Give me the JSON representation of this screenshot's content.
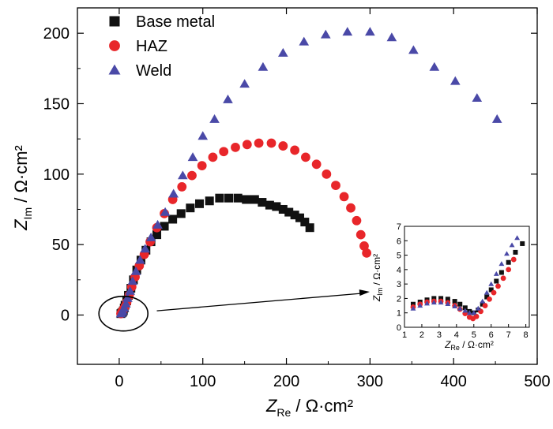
{
  "chart_data": {
    "type": "scatter",
    "title": "",
    "xlabel": {
      "main": "Z",
      "sub": "Re",
      "unit": " / Ω·cm²"
    },
    "ylabel": {
      "main": "Z",
      "sub": "Im",
      "unit": " / Ω·cm²"
    },
    "xlim": [
      -50,
      500
    ],
    "ylim": [
      -35,
      218
    ],
    "xticks": [
      "0",
      "100",
      "200",
      "300",
      "400",
      "500"
    ],
    "xtick_values": [
      0,
      100,
      200,
      300,
      400,
      500
    ],
    "yticks": [
      "0",
      "50",
      "100",
      "150",
      "200"
    ],
    "ytick_values": [
      0,
      50,
      100,
      150,
      200
    ],
    "legend_position": "top-left",
    "series": [
      {
        "name": "Base metal",
        "marker": "square",
        "color": "#111111",
        "points": [
          [
            2,
            1
          ],
          [
            3,
            1.5
          ],
          [
            4,
            2
          ],
          [
            5,
            3
          ],
          [
            6,
            5
          ],
          [
            7,
            7
          ],
          [
            9,
            10
          ],
          [
            11,
            14
          ],
          [
            14,
            19
          ],
          [
            17,
            25
          ],
          [
            21,
            32
          ],
          [
            26,
            39
          ],
          [
            32,
            46
          ],
          [
            38,
            52
          ],
          [
            45,
            57
          ],
          [
            54,
            63
          ],
          [
            64,
            68
          ],
          [
            74,
            72
          ],
          [
            85,
            76
          ],
          [
            96,
            79
          ],
          [
            108,
            81
          ],
          [
            120,
            83
          ],
          [
            131,
            83
          ],
          [
            142,
            83
          ],
          [
            152,
            82
          ],
          [
            162,
            82
          ],
          [
            171,
            80
          ],
          [
            180,
            78
          ],
          [
            188,
            77
          ],
          [
            196,
            75
          ],
          [
            203,
            73
          ],
          [
            210,
            71
          ],
          [
            216,
            69
          ],
          [
            222,
            66
          ],
          [
            228,
            62
          ]
        ]
      },
      {
        "name": "HAZ",
        "marker": "circle",
        "color": "#e8262a",
        "points": [
          [
            2,
            1
          ],
          [
            3,
            2
          ],
          [
            4,
            3
          ],
          [
            5,
            4
          ],
          [
            7,
            6
          ],
          [
            9,
            9
          ],
          [
            12,
            14
          ],
          [
            15,
            20
          ],
          [
            19,
            27
          ],
          [
            24,
            35
          ],
          [
            30,
            43
          ],
          [
            37,
            52
          ],
          [
            45,
            62
          ],
          [
            54,
            72
          ],
          [
            64,
            82
          ],
          [
            75,
            91
          ],
          [
            87,
            99
          ],
          [
            99,
            106
          ],
          [
            112,
            112
          ],
          [
            125,
            116
          ],
          [
            139,
            119
          ],
          [
            153,
            121
          ],
          [
            167,
            122
          ],
          [
            182,
            122
          ],
          [
            196,
            120
          ],
          [
            210,
            117
          ],
          [
            223,
            112
          ],
          [
            236,
            107
          ],
          [
            248,
            100
          ],
          [
            259,
            92
          ],
          [
            269,
            84
          ],
          [
            277,
            76
          ],
          [
            284,
            67
          ],
          [
            289,
            57
          ],
          [
            293,
            49
          ],
          [
            296,
            44
          ]
        ]
      },
      {
        "name": "Weld",
        "marker": "triangle",
        "color": "#4a49a7",
        "points": [
          [
            2,
            1
          ],
          [
            3,
            2
          ],
          [
            4,
            3
          ],
          [
            6,
            5
          ],
          [
            8,
            8
          ],
          [
            10,
            12
          ],
          [
            13,
            17
          ],
          [
            16,
            24
          ],
          [
            20,
            31
          ],
          [
            25,
            39
          ],
          [
            31,
            47
          ],
          [
            38,
            55
          ],
          [
            46,
            64
          ],
          [
            55,
            73
          ],
          [
            65,
            86
          ],
          [
            76,
            99
          ],
          [
            88,
            112
          ],
          [
            100,
            127
          ],
          [
            114,
            139
          ],
          [
            130,
            153
          ],
          [
            150,
            164
          ],
          [
            172,
            176
          ],
          [
            196,
            186
          ],
          [
            221,
            194
          ],
          [
            247,
            199
          ],
          [
            273,
            201
          ],
          [
            300,
            201
          ],
          [
            326,
            197
          ],
          [
            352,
            188
          ],
          [
            377,
            176
          ],
          [
            402,
            166
          ],
          [
            428,
            154
          ],
          [
            452,
            139
          ]
        ]
      }
    ],
    "annotation": {
      "type": "ellipse-with-arrow",
      "ellipse_center": [
        5,
        1
      ],
      "arrow_from": [
        45,
        3
      ],
      "arrow_to_note": "points to inset"
    },
    "inset": {
      "type": "scatter",
      "xlabel": {
        "main": "Z",
        "sub": "Re",
        "unit": " / Ω·cm²"
      },
      "ylabel": {
        "main": "Z",
        "sub": "Im",
        "unit": " / Ω·cm²"
      },
      "xlim": [
        1,
        8.2
      ],
      "ylim": [
        0,
        7
      ],
      "xticks": [
        "1",
        "2",
        "3",
        "4",
        "5",
        "6",
        "7",
        "8"
      ],
      "xtick_values": [
        1,
        2,
        3,
        4,
        5,
        6,
        7,
        8
      ],
      "yticks": [
        "0",
        "1",
        "2",
        "3",
        "4",
        "5",
        "6",
        "7"
      ],
      "ytick_values": [
        0,
        1,
        2,
        3,
        4,
        5,
        6,
        7
      ],
      "series": [
        {
          "name": "Base metal",
          "marker": "square",
          "color": "#111111",
          "points": [
            [
              1.5,
              1.6
            ],
            [
              1.9,
              1.75
            ],
            [
              2.3,
              1.9
            ],
            [
              2.7,
              2.0
            ],
            [
              3.1,
              2.0
            ],
            [
              3.5,
              1.95
            ],
            [
              3.9,
              1.8
            ],
            [
              4.2,
              1.6
            ],
            [
              4.5,
              1.35
            ],
            [
              4.75,
              1.1
            ],
            [
              5.0,
              1.0
            ],
            [
              5.25,
              1.2
            ],
            [
              5.5,
              1.6
            ],
            [
              5.75,
              2.1
            ],
            [
              6.0,
              2.6
            ],
            [
              6.3,
              3.2
            ],
            [
              6.6,
              3.8
            ],
            [
              7.0,
              4.5
            ],
            [
              7.4,
              5.2
            ],
            [
              7.8,
              5.8
            ]
          ]
        },
        {
          "name": "HAZ",
          "marker": "circle",
          "color": "#e8262a",
          "points": [
            [
              1.5,
              1.4
            ],
            [
              1.9,
              1.6
            ],
            [
              2.3,
              1.75
            ],
            [
              2.7,
              1.8
            ],
            [
              3.1,
              1.8
            ],
            [
              3.5,
              1.7
            ],
            [
              3.9,
              1.5
            ],
            [
              4.2,
              1.25
            ],
            [
              4.5,
              0.95
            ],
            [
              4.75,
              0.7
            ],
            [
              4.95,
              0.6
            ],
            [
              5.15,
              0.75
            ],
            [
              5.4,
              1.1
            ],
            [
              5.65,
              1.5
            ],
            [
              5.9,
              1.95
            ],
            [
              6.15,
              2.4
            ],
            [
              6.4,
              2.85
            ],
            [
              6.7,
              3.4
            ],
            [
              7.0,
              4.0
            ],
            [
              7.3,
              4.7
            ]
          ]
        },
        {
          "name": "Weld",
          "marker": "triangle",
          "color": "#4a49a7",
          "points": [
            [
              1.5,
              1.3
            ],
            [
              1.9,
              1.5
            ],
            [
              2.3,
              1.65
            ],
            [
              2.7,
              1.72
            ],
            [
              3.1,
              1.72
            ],
            [
              3.5,
              1.62
            ],
            [
              3.9,
              1.45
            ],
            [
              4.2,
              1.3
            ],
            [
              4.5,
              1.15
            ],
            [
              4.75,
              1.0
            ],
            [
              5.0,
              1.0
            ],
            [
              5.25,
              1.3
            ],
            [
              5.5,
              1.8
            ],
            [
              5.75,
              2.4
            ],
            [
              6.0,
              3.0
            ],
            [
              6.3,
              3.7
            ],
            [
              6.6,
              4.4
            ],
            [
              6.9,
              5.1
            ],
            [
              7.2,
              5.7
            ],
            [
              7.5,
              6.2
            ]
          ]
        }
      ]
    }
  }
}
